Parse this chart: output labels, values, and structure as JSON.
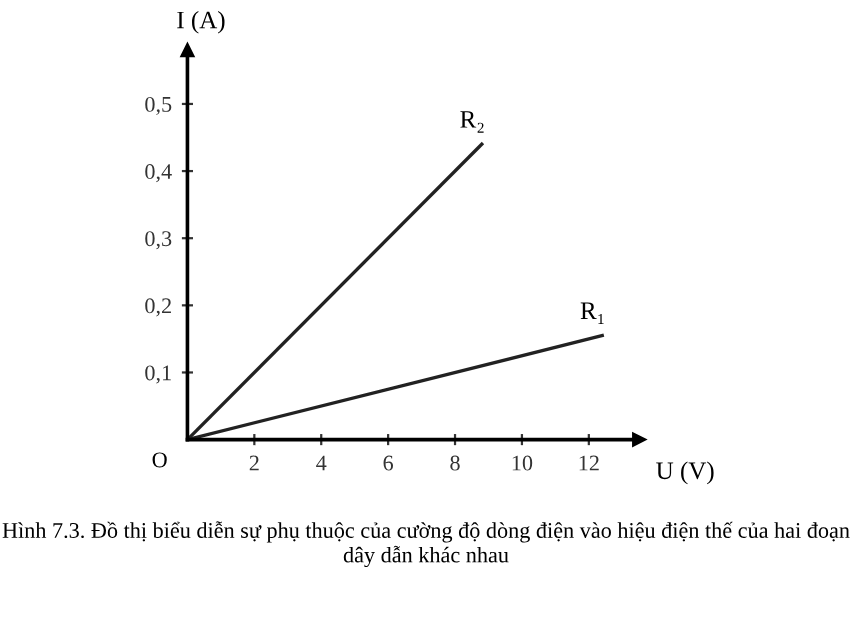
{
  "chart_data": {
    "type": "line",
    "xlabel": "U (V)",
    "ylabel": "I (A)",
    "xlim": [
      0,
      13.5
    ],
    "ylim": [
      0,
      0.58
    ],
    "xticks": [
      2,
      4,
      6,
      8,
      10,
      12
    ],
    "yticks": [
      {
        "value": 0.1,
        "label": "0,1"
      },
      {
        "value": 0.2,
        "label": "0,2"
      },
      {
        "value": 0.3,
        "label": "0,3"
      },
      {
        "value": 0.4,
        "label": "0,4"
      },
      {
        "value": 0.5,
        "label": "0,5"
      }
    ],
    "series": [
      {
        "name": "R₁",
        "color": "#222222",
        "x": [
          0,
          12.4
        ],
        "values": [
          0,
          0.155
        ]
      },
      {
        "name": "R₂",
        "color": "#222222",
        "x": [
          0,
          8.8
        ],
        "values": [
          0,
          0.44
        ]
      }
    ],
    "grid": false,
    "legend": false,
    "annotations": [
      "O",
      "Hình 7.3. Đồ thị biểu diễn sự phụ thuộc của cường độ dòng điện vào hiệu điện thế của hai đoạn dây dẫn khác nhau"
    ]
  }
}
